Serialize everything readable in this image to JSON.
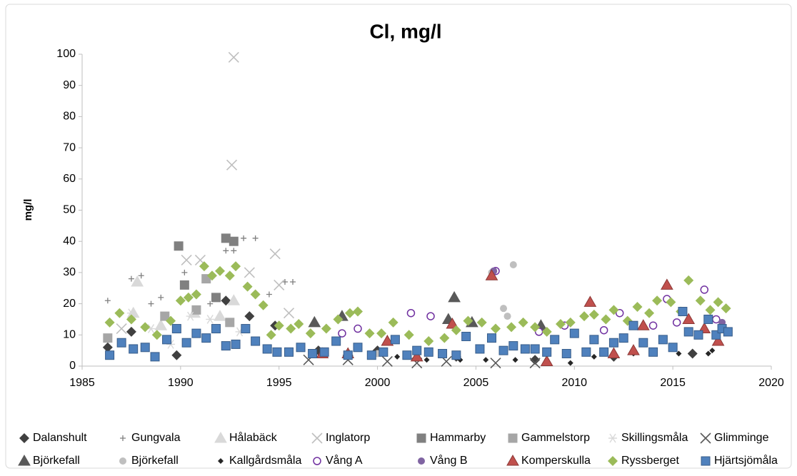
{
  "chart_data": {
    "type": "scatter",
    "title": "Cl, mg/l",
    "y_label": "mg/l",
    "xlim": [
      1985,
      2020
    ],
    "xticks": [
      1985,
      1990,
      1995,
      2000,
      2005,
      2010,
      2015,
      2020
    ],
    "ylim": [
      0,
      100
    ],
    "yticks": [
      0,
      10,
      20,
      30,
      40,
      50,
      60,
      70,
      80,
      90,
      100
    ],
    "grid": false,
    "legend": "bottom",
    "series": [
      {
        "name": "Dalanshult",
        "marker": "diamond",
        "color": "#404040",
        "x": [
          1986.3,
          1987.5,
          1989.8,
          1992.3,
          1993.5,
          1994.8,
          1997,
          2000,
          2004,
          2008,
          2012,
          2016
        ],
        "values": [
          6,
          11,
          3.5,
          21,
          16,
          13,
          5,
          5,
          3,
          2,
          3,
          4
        ]
      },
      {
        "name": "Gungvala",
        "marker": "plus",
        "color": "#7f7f7f",
        "x": [
          1986.3,
          1987.5,
          1988,
          1988.5,
          1989,
          1990.2,
          1990.8,
          1991.5,
          1992.3,
          1992.7,
          1993.2,
          1993.8,
          1994.5,
          1995.3,
          1995.7
        ],
        "values": [
          21,
          28,
          29,
          20,
          22,
          30,
          23,
          20,
          37,
          37,
          41,
          41,
          23,
          27,
          27
        ]
      },
      {
        "name": "Hålabäck",
        "marker": "triangle",
        "color": "#d9d9d9",
        "x": [
          1987.8,
          1987.6,
          1990.7,
          1992,
          1992.7,
          1989
        ],
        "values": [
          27,
          17,
          17,
          16,
          21,
          13
        ]
      },
      {
        "name": "Inglatorp",
        "marker": "x",
        "color": "#bfbfbf",
        "x": [
          1992.7,
          1992.6,
          1993.5,
          1994.8,
          1995,
          1995.5,
          1990.3,
          1991,
          1987
        ],
        "values": [
          99,
          64.5,
          30,
          36,
          26,
          17,
          34,
          34,
          12
        ]
      },
      {
        "name": "Hammarby",
        "marker": "square",
        "color": "#808080",
        "x": [
          1989.9,
          1992.3,
          1992.7,
          1990.2,
          1991.8
        ],
        "values": [
          38.5,
          41,
          40,
          26,
          22
        ]
      },
      {
        "name": "Gammelstorp",
        "marker": "square",
        "color": "#a6a6a6",
        "x": [
          1986.3,
          1989.2,
          1990.8,
          1991.3,
          1992.5
        ],
        "values": [
          9,
          16,
          18,
          28,
          14
        ]
      },
      {
        "name": "Skillingsmåla",
        "marker": "star",
        "color": "#d9d9d9",
        "x": [
          1987.5,
          1988.5,
          1990.5,
          1991.5,
          1993,
          1989.5
        ],
        "values": [
          17,
          12,
          16,
          15,
          11,
          7
        ]
      },
      {
        "name": "Glimminge",
        "marker": "x",
        "color": "#595959",
        "x": [
          1996.5,
          1998.5,
          2000.5,
          2002,
          2003.5,
          2006,
          2008
        ],
        "values": [
          2,
          2,
          1.5,
          1,
          1.5,
          1,
          1
        ]
      },
      {
        "name": "Björkefall",
        "marker": "triangle",
        "color": "#595959",
        "x": [
          2003.9,
          2003.6,
          2004.8,
          1998.2,
          1996.8,
          2008.3
        ],
        "values": [
          22,
          15,
          14,
          16,
          14,
          13
        ]
      },
      {
        "name": "Björkefall",
        "marker": "circle",
        "color": "#bfbfbf",
        "x": [
          2006.9,
          2006.4,
          2006.6,
          2005.8,
          2000
        ],
        "values": [
          32.5,
          18.5,
          16,
          30,
          4
        ]
      },
      {
        "name": "Kallgårdsmåla",
        "marker": "small-diamond",
        "color": "#262626",
        "x": [
          2001,
          2002.5,
          2004.2,
          2005.5,
          2007,
          2009.8,
          2011,
          2013,
          2015.3,
          2016.8,
          2017
        ],
        "values": [
          3,
          2,
          2,
          2,
          2,
          1,
          3,
          4,
          4,
          4,
          5
        ]
      },
      {
        "name": "Vång A",
        "marker": "hollow-circle",
        "color": "#7030a0",
        "x": [
          1998.2,
          1999,
          2001.7,
          2002.7,
          2006,
          2008.2,
          2009.5,
          2011.5,
          2012.3,
          2014,
          2014.7,
          2015.2,
          2016.6,
          2017.2
        ],
        "values": [
          10.5,
          12,
          17,
          16,
          30.5,
          11,
          13,
          11.5,
          17,
          13,
          21.5,
          14,
          24.5,
          15
        ]
      },
      {
        "name": "Vång B",
        "marker": "circle",
        "color": "#8064a2",
        "x": [
          2005.9,
          2017.5
        ],
        "values": [
          30.5,
          14
        ]
      },
      {
        "name": "Komperskulla",
        "marker": "triangle",
        "color": "#c0504d",
        "x": [
          2005.8,
          2003.8,
          2010.8,
          2014.7,
          2015.8,
          2013.5,
          2016.6,
          2017.3,
          1997.2,
          1998.5,
          2000.5,
          2002,
          2008.6,
          2012,
          2013
        ],
        "values": [
          29,
          13.5,
          20.5,
          26,
          15,
          13,
          12,
          8,
          4,
          4,
          8,
          3,
          1.5,
          4,
          5
        ]
      },
      {
        "name": "Ryssberget",
        "marker": "diamond",
        "color": "#9bbb59",
        "x": [
          1986.4,
          1986.9,
          1987.5,
          1988.2,
          1988.8,
          1989.5,
          1990,
          1990.4,
          1990.8,
          1991.2,
          1991.6,
          1992,
          1992.5,
          1992.8,
          1993.4,
          1993.8,
          1994.2,
          1994.6,
          1995,
          1995.6,
          1996,
          1996.6,
          1997.4,
          1998,
          1998.6,
          1999,
          1999.6,
          2000.2,
          2000.8,
          2001.6,
          2002.6,
          2003.4,
          2004,
          2004.6,
          2005.3,
          2006,
          2006.8,
          2007.4,
          2008,
          2008.6,
          2009.3,
          2009.8,
          2010.5,
          2011,
          2011.6,
          2012,
          2012.7,
          2013.2,
          2013.8,
          2014.2,
          2014.9,
          2015.4,
          2015.8,
          2016.4,
          2016.9,
          2017.3,
          2017.7
        ],
        "values": [
          14,
          17,
          15,
          12.5,
          10,
          14.5,
          21,
          22,
          23,
          32,
          29,
          30.5,
          29,
          32,
          25.5,
          23,
          19.5,
          10,
          13,
          12,
          13.5,
          10.5,
          12,
          15,
          17,
          17.5,
          10.5,
          10.5,
          14,
          10,
          8,
          9,
          11.5,
          14.5,
          14,
          12,
          12.5,
          14,
          12.5,
          11,
          13.5,
          14,
          16,
          16.5,
          15,
          18,
          14.5,
          19,
          17,
          21,
          20.5,
          17.5,
          27.5,
          21,
          18,
          20.5,
          18.5
        ]
      },
      {
        "name": "Hjärtsjömåla",
        "marker": "square",
        "color": "#4f81bd",
        "x": [
          1986.4,
          1987,
          1987.6,
          1988.2,
          1988.7,
          1989.3,
          1989.8,
          1990.3,
          1990.8,
          1991.3,
          1991.8,
          1992.3,
          1992.8,
          1993.3,
          1993.8,
          1994.4,
          1994.9,
          1995.5,
          1996.1,
          1996.7,
          1997.3,
          1997.9,
          1998.5,
          1999,
          1999.7,
          2000.3,
          2000.9,
          2001.5,
          2002,
          2002.6,
          2003.3,
          2004,
          2004.5,
          2005.2,
          2005.8,
          2006.4,
          2006.9,
          2007.5,
          2008,
          2008.6,
          2009,
          2009.6,
          2010,
          2010.6,
          2011,
          2011.5,
          2012,
          2012.5,
          2013,
          2013.5,
          2014,
          2014.5,
          2015,
          2015.5,
          2015.8,
          2016.3,
          2016.8,
          2017.2,
          2017.5,
          2017.8
        ],
        "values": [
          3.5,
          7.5,
          5.5,
          6,
          3,
          8.5,
          12,
          7.5,
          10.5,
          9,
          12,
          6.5,
          7,
          12,
          8,
          5.5,
          4.5,
          4.5,
          6,
          4,
          4.5,
          8,
          3.5,
          6,
          3.5,
          4.5,
          8.5,
          3.5,
          5,
          4.5,
          4,
          3.5,
          9.5,
          5.5,
          9,
          5,
          6.5,
          5.5,
          5.5,
          4.5,
          8.5,
          4,
          10.5,
          4.5,
          8.5,
          4.5,
          7.5,
          9,
          13,
          7.5,
          4.5,
          8.5,
          6,
          17.5,
          11,
          10,
          15,
          10,
          12,
          11
        ]
      }
    ]
  }
}
